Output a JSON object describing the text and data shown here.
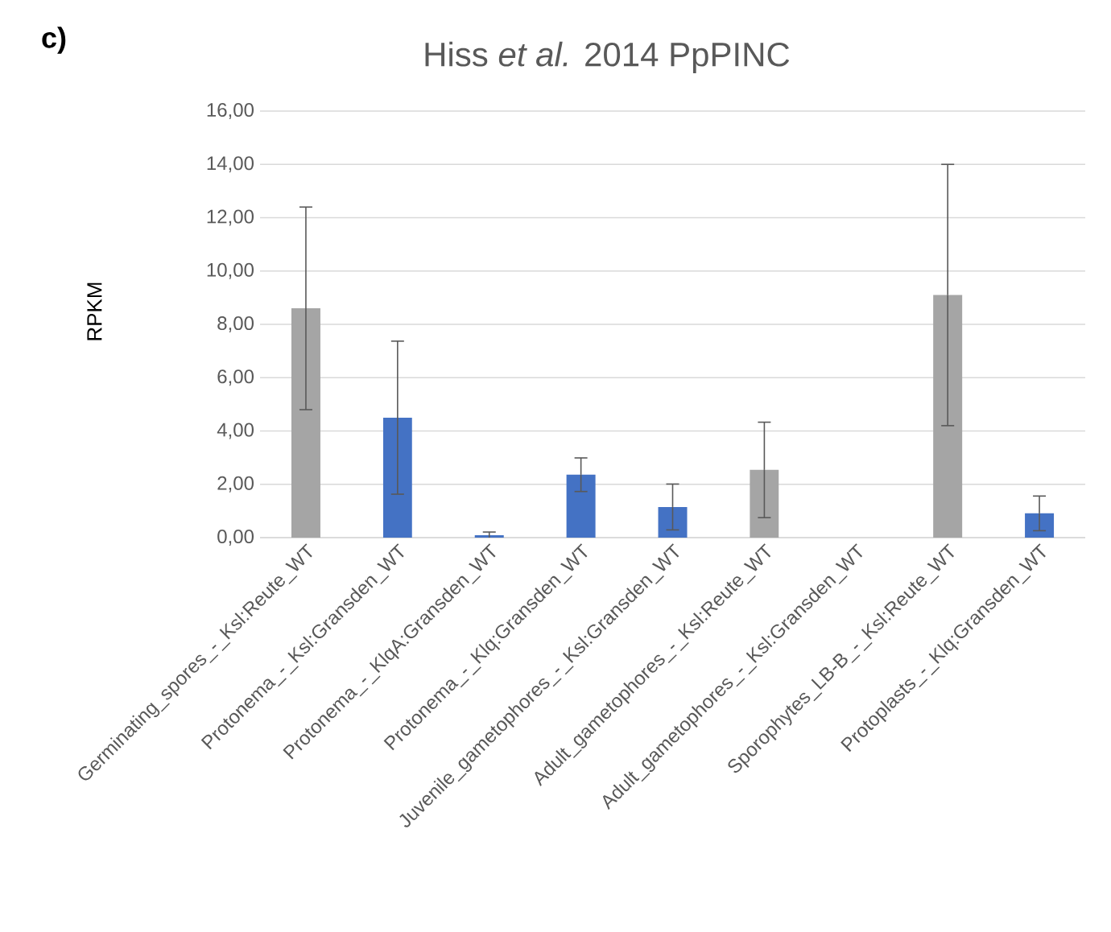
{
  "chart_data": {
    "type": "bar",
    "title": "Hiss *et al.* 2014 PpPINC",
    "ylabel": "RPKM",
    "annotations": [
      "c)"
    ],
    "categories": [
      "Germinating_spores_-_Ksl:Reute_WT",
      "Protonema_-_Ksl:Gransden_WT",
      "Protonema_-_KlqA:Gransden_WT",
      "Protonema_-_Klq:Gransden_WT",
      "Juvenile_gametophores_-_Ksl:Gransden_WT",
      "Adult_gametophores_-_Ksl:Reute_WT",
      "Adult_gametophores_-_Ksl:Gransden_WT",
      "Sporophytes_LB-B_-_Ksl:Reute_WT",
      "Protoplasts_-_Klq:Gransden_WT"
    ],
    "values": [
      8.6,
      4.5,
      0.09,
      2.36,
      1.15,
      2.54,
      0,
      9.1,
      0.91
    ],
    "errors": [
      3.8,
      2.87,
      0.12,
      0.63,
      0.86,
      1.79,
      null,
      4.9,
      0.65
    ],
    "colors": [
      "#a5a5a5",
      "#4472c4",
      "#4472c4",
      "#4472c4",
      "#4472c4",
      "#a5a5a5",
      "#a5a5a5",
      "#a5a5a5",
      "#4472c4"
    ],
    "ylim": [
      0,
      16
    ],
    "yticks": [
      {
        "value": 0,
        "label": "0,00"
      },
      {
        "value": 2,
        "label": "2,00"
      },
      {
        "value": 4,
        "label": "4,00"
      },
      {
        "value": 6,
        "label": "6,00"
      },
      {
        "value": 8,
        "label": "8,00"
      },
      {
        "value": 10,
        "label": "10,00"
      },
      {
        "value": 12,
        "label": "12,00"
      },
      {
        "value": 14,
        "label": "14,00"
      },
      {
        "value": 16,
        "label": "16,00"
      }
    ],
    "grid": "y"
  }
}
